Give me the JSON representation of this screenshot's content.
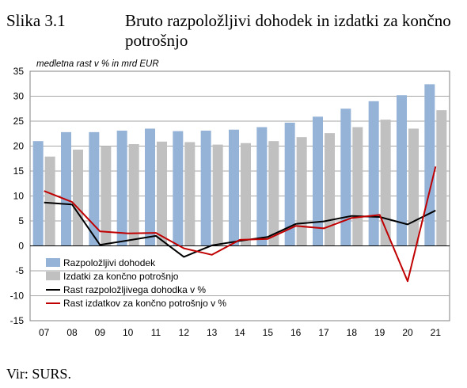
{
  "figure": {
    "label": "Slika 3.1",
    "title": "Bruto razpoložljivi dohodek in izdatki za končno potrošnjo",
    "source": "Vir: SURS."
  },
  "chart_data": {
    "type": "bar",
    "subtitle": "medletna rast v % in mrd EUR",
    "categories": [
      "07",
      "08",
      "09",
      "10",
      "11",
      "12",
      "13",
      "14",
      "15",
      "16",
      "17",
      "18",
      "19",
      "20",
      "21"
    ],
    "ylim": [
      -15,
      35
    ],
    "yticks": [
      -15,
      -10,
      -5,
      0,
      5,
      10,
      15,
      20,
      25,
      30,
      35
    ],
    "grid": true,
    "legend_position": "bottom-left",
    "series": [
      {
        "name": "Razpoložljivi dohodek",
        "kind": "bar",
        "color": "#95b3d7",
        "values": [
          21.0,
          22.8,
          22.8,
          23.1,
          23.5,
          23.0,
          23.1,
          23.3,
          23.8,
          24.7,
          25.9,
          27.5,
          29.0,
          30.2,
          32.4
        ]
      },
      {
        "name": "Izdatki za končno potrošnjo",
        "kind": "bar",
        "color": "#c0c0c0",
        "values": [
          17.9,
          19.3,
          20.0,
          20.4,
          20.9,
          20.8,
          20.3,
          20.6,
          21.0,
          21.8,
          22.6,
          23.8,
          25.3,
          23.5,
          27.2
        ]
      },
      {
        "name": "Rast razpoložljivega dohodka v %",
        "kind": "line",
        "color": "#000000",
        "values": [
          8.7,
          8.3,
          0.2,
          1.1,
          2.0,
          -2.2,
          0.1,
          1.0,
          1.8,
          4.4,
          4.9,
          6.0,
          5.8,
          4.3,
          7.1
        ]
      },
      {
        "name": "Rast izdatkov za končno potrošnjo v %",
        "kind": "line",
        "color": "#c00000",
        "values": [
          11.0,
          8.8,
          2.9,
          2.5,
          2.6,
          -0.5,
          -1.8,
          1.2,
          1.4,
          4.0,
          3.5,
          5.6,
          6.2,
          -7.1,
          15.9
        ]
      }
    ]
  }
}
